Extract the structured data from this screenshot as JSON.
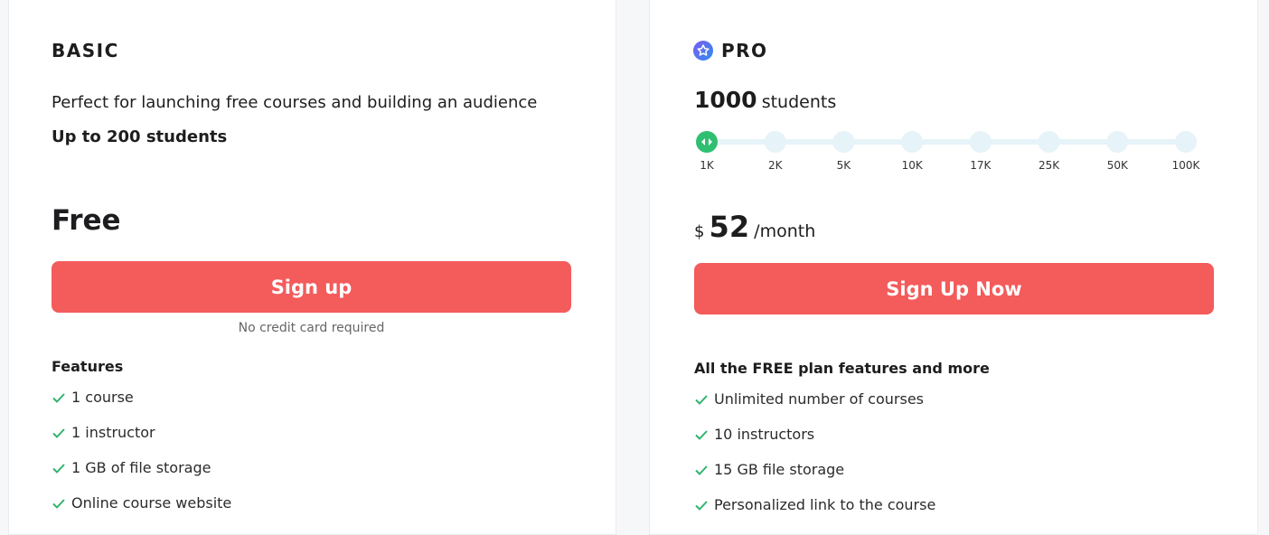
{
  "basic": {
    "title": "BASIC",
    "description": "Perfect for launching free courses and building an audience",
    "limit": "Up to 200 students",
    "price": "Free",
    "button": "Sign up",
    "note": "No credit card required",
    "features_title": "Features",
    "features": [
      "1 course",
      "1 instructor",
      "1 GB of file storage",
      "Online course website"
    ]
  },
  "pro": {
    "title": "PRO",
    "students": 1000,
    "students_label": "students",
    "slider": {
      "labels": [
        "1K",
        "2K",
        "5K",
        "10K",
        "17K",
        "25K",
        "50K",
        "100K"
      ],
      "selected_index": 0
    },
    "currency": "$",
    "amount": 52,
    "period": "/month",
    "button": "Sign Up Now",
    "features_title": "All the FREE plan features and more",
    "features": [
      "Unlimited number of courses",
      "10 instructors",
      "15 GB file storage",
      "Personalized link to the course"
    ]
  }
}
